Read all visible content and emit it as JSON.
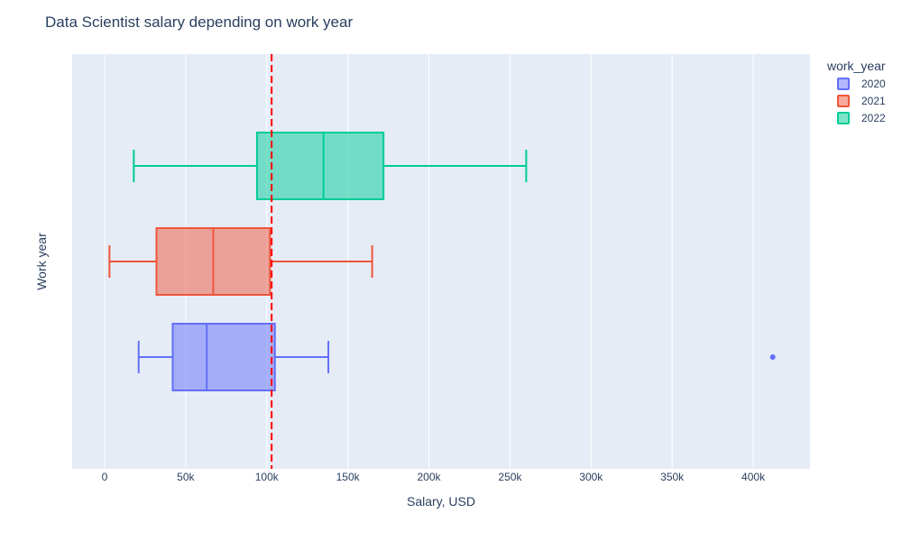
{
  "chart_data": {
    "type": "box",
    "orientation": "horizontal",
    "title": "Data Scientist salary depending on work year",
    "xlabel": "Salary, USD",
    "ylabel": "Work year",
    "xlim": [
      -20000,
      435000
    ],
    "x_ticks": [
      0,
      50000,
      100000,
      150000,
      200000,
      250000,
      300000,
      350000,
      400000
    ],
    "x_tick_labels": [
      "0",
      "50k",
      "100k",
      "150k",
      "200k",
      "250k",
      "300k",
      "350k",
      "400k"
    ],
    "grid": true,
    "legend": {
      "title": "work_year",
      "placement": "top-right"
    },
    "series": [
      {
        "name": "2020",
        "color": "#636efa",
        "min": 21000,
        "q1": 42000,
        "median": 63000,
        "q3": 105000,
        "max": 138000,
        "outliers": [
          412000
        ]
      },
      {
        "name": "2021",
        "color": "#ef553b",
        "min": 3000,
        "q1": 32000,
        "median": 67000,
        "q3": 102000,
        "max": 165000,
        "outliers": []
      },
      {
        "name": "2022",
        "color": "#00cc96",
        "min": 18000,
        "q1": 94000,
        "median": 135000,
        "q3": 172000,
        "max": 260000,
        "outliers": []
      }
    ],
    "reference_line": {
      "x": 103000,
      "color": "#ff0000",
      "style": "dashed"
    }
  }
}
